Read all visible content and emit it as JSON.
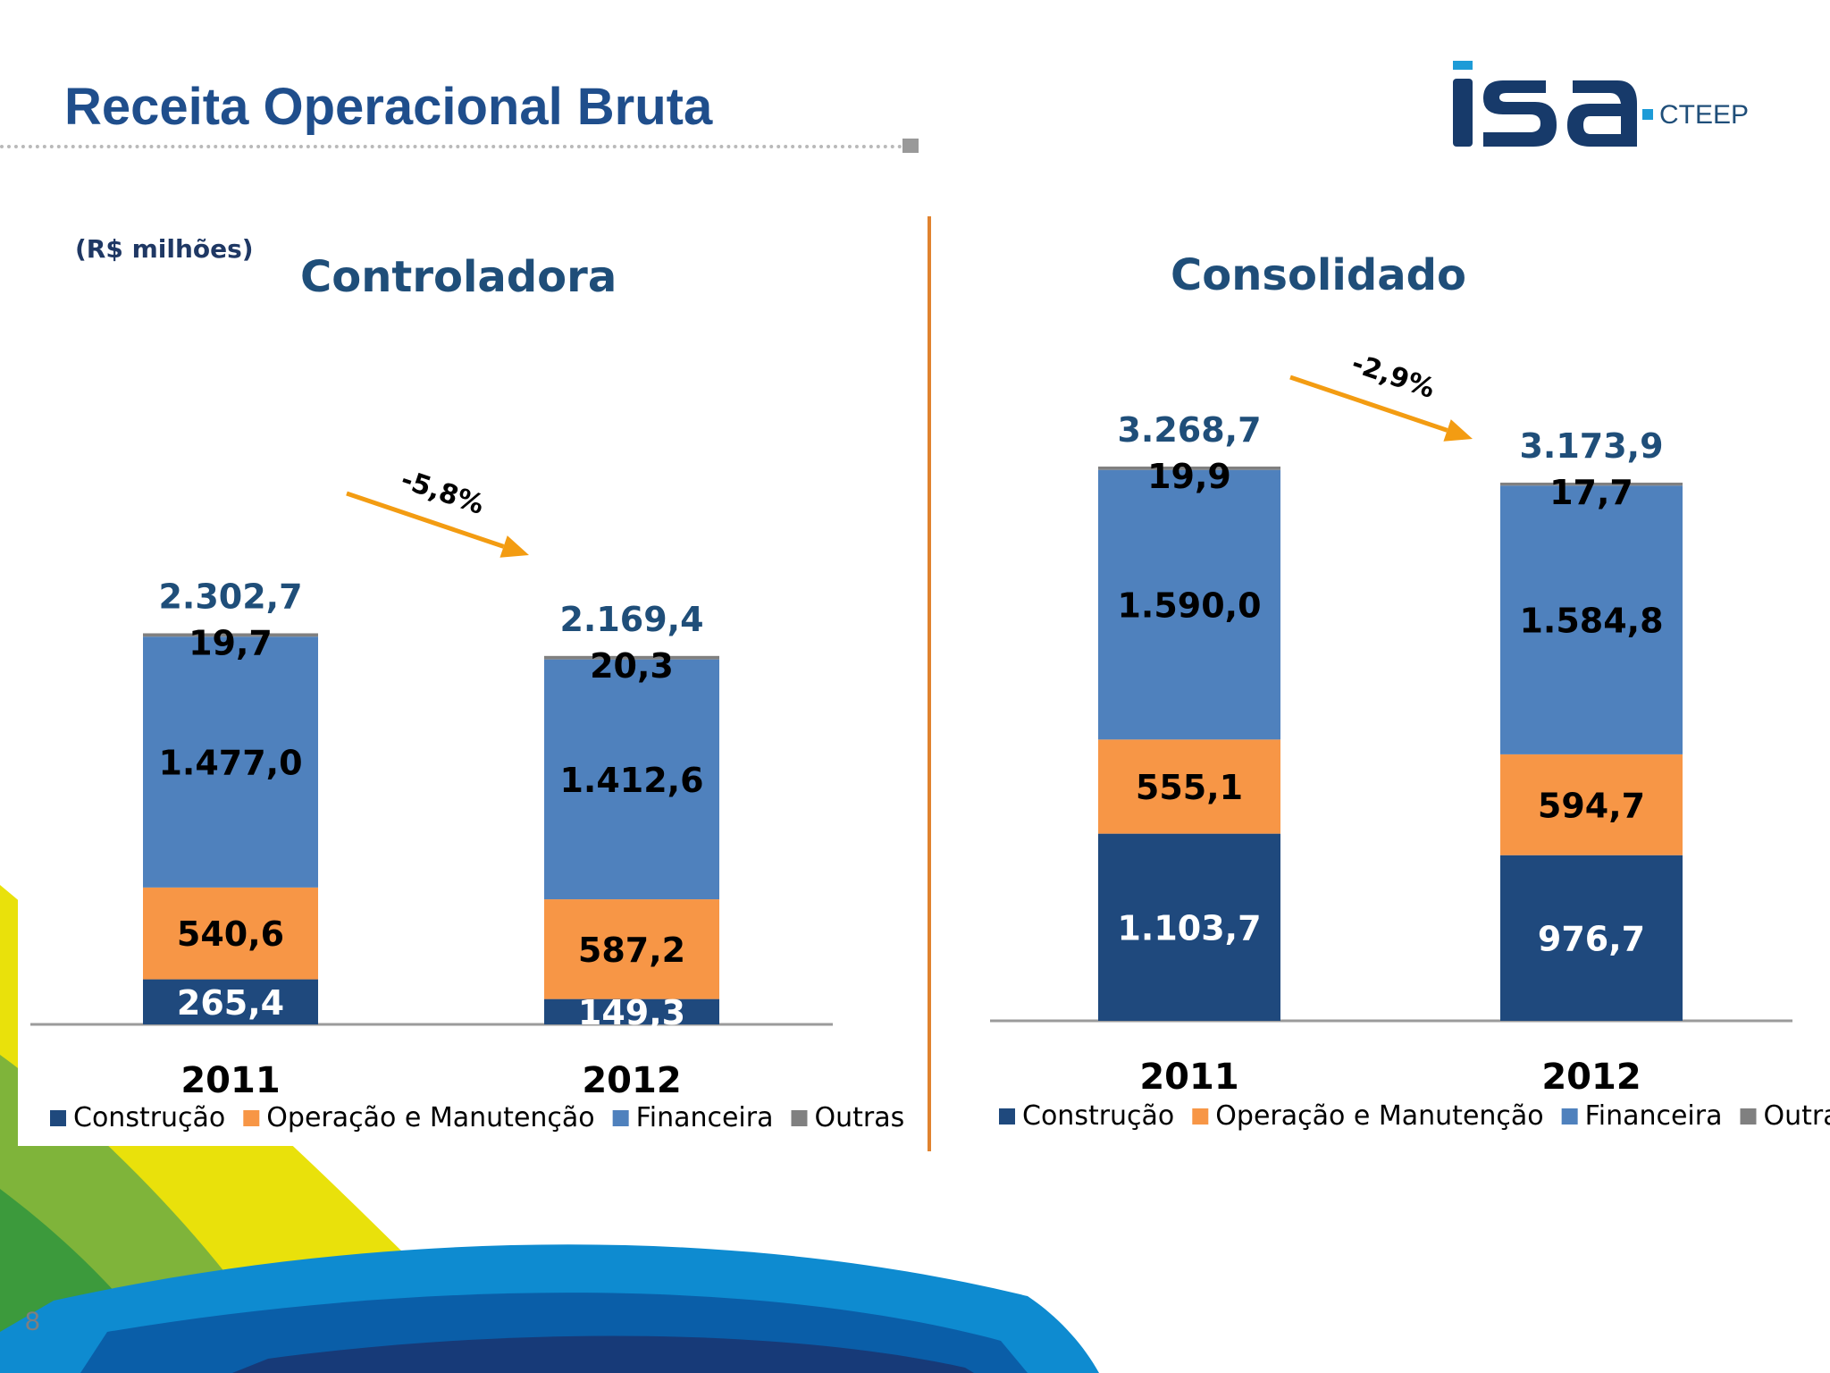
{
  "page": {
    "title": "Receita Operacional Bruta",
    "unit": "(R$ milhões)",
    "page_number": "8",
    "logo": {
      "brand": "isa",
      "sub": "CTEEP",
      "icon": "isa-cteep-logo"
    }
  },
  "colors": {
    "construcao": "#1F497D",
    "operacao": "#F79646",
    "financeira": "#4F81BD",
    "outras": "#808080",
    "arrow": "#F39C12",
    "total_label": "#1F4E79",
    "divider": "#E0832F"
  },
  "chart_data": [
    {
      "type": "bar",
      "stacked": true,
      "title": "Controladora",
      "categories": [
        "2011",
        "2012"
      ],
      "series": [
        {
          "name": "Construção",
          "values": [
            265.4,
            149.3
          ],
          "labels": [
            "265,4",
            "149,3"
          ]
        },
        {
          "name": "Operação e Manutenção",
          "values": [
            540.6,
            587.2
          ],
          "labels": [
            "540,6",
            "587,2"
          ]
        },
        {
          "name": "Financeira",
          "values": [
            1477.0,
            1412.6
          ],
          "labels": [
            "1.477,0",
            "1.412,6"
          ]
        },
        {
          "name": "Outras",
          "values": [
            19.7,
            20.3
          ],
          "labels": [
            "19,7",
            "20,3"
          ]
        }
      ],
      "totals": [
        2302.7,
        2169.4
      ],
      "total_labels": [
        "2.302,7",
        "2.169,4"
      ],
      "change_label": "-5,8%",
      "legend_position": "bottom",
      "grid": false
    },
    {
      "type": "bar",
      "stacked": true,
      "title": "Consolidado",
      "categories": [
        "2011",
        "2012"
      ],
      "series": [
        {
          "name": "Construção",
          "values": [
            1103.7,
            976.7
          ],
          "labels": [
            "1.103,7",
            "976,7"
          ]
        },
        {
          "name": "Operação e Manutenção",
          "values": [
            555.1,
            594.7
          ],
          "labels": [
            "555,1",
            "594,7"
          ]
        },
        {
          "name": "Financeira",
          "values": [
            1590.0,
            1584.8
          ],
          "labels": [
            "1.590,0",
            "1.584,8"
          ]
        },
        {
          "name": "Outras",
          "values": [
            19.9,
            17.7
          ],
          "labels": [
            "19,9",
            "17,7"
          ]
        }
      ],
      "totals": [
        3268.7,
        3173.9
      ],
      "total_labels": [
        "3.268,7",
        "3.173,9"
      ],
      "change_label": "-2,9%",
      "legend_position": "bottom",
      "grid": false
    }
  ]
}
